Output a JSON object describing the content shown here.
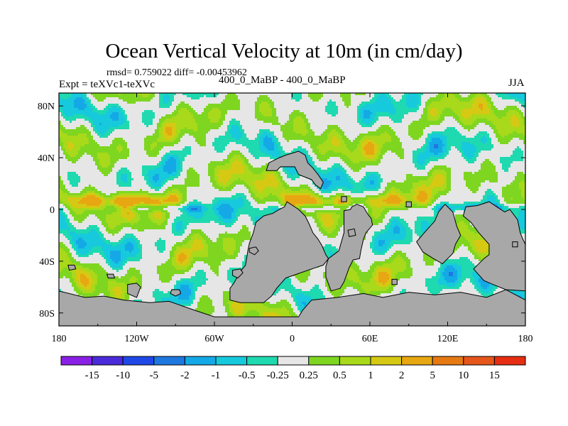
{
  "chart_data": {
    "type": "heatmap",
    "title": "Ocean Vertical Velocity at 10m (in cm/day)",
    "stats_text": "rmsd= 0.759022  diff= -0.00453962",
    "left_label": "Expt = teXVc1-teXVc",
    "center_label": "400_0_MaBP - 400_0_MaBP",
    "right_label": "JJA",
    "variable": "Ocean Vertical Velocity at 10m",
    "units": "cm/day",
    "rmsd": 0.759022,
    "diff": -0.00453962,
    "xlim": [
      -180,
      180
    ],
    "ylim": [
      -90,
      90
    ],
    "x_ticks": [
      {
        "value": -180,
        "label": "180"
      },
      {
        "value": -120,
        "label": "120W"
      },
      {
        "value": -60,
        "label": "60W"
      },
      {
        "value": 0,
        "label": "0"
      },
      {
        "value": 60,
        "label": "60E"
      },
      {
        "value": 120,
        "label": "120E"
      },
      {
        "value": 180,
        "label": "180"
      }
    ],
    "y_ticks": [
      {
        "value": 80,
        "label": "80N"
      },
      {
        "value": 40,
        "label": "40N"
      },
      {
        "value": 0,
        "label": "0"
      },
      {
        "value": -40,
        "label": "40S"
      },
      {
        "value": -80,
        "label": "80S"
      }
    ],
    "colorbar": {
      "levels": [
        "-15",
        "-10",
        "-5",
        "-2",
        "-1",
        "-0.5",
        "-0.25",
        "0.25",
        "0.5",
        "1",
        "2",
        "5",
        "10",
        "15"
      ],
      "colors": [
        "#8a1fe6",
        "#4a2bd9",
        "#1f48e6",
        "#1e78e0",
        "#14a9e6",
        "#17c9dc",
        "#1fd9b0",
        "#e6e6e6",
        "#7ed621",
        "#a8d91a",
        "#d6c914",
        "#e6a712",
        "#e67a12",
        "#e6551a",
        "#e62e12"
      ]
    },
    "land_color": "#a8a8a8",
    "land_regions": [
      {
        "name": "Antarctica",
        "polygon": [
          [
            -180,
            -63
          ],
          [
            -160,
            -68
          ],
          [
            -145,
            -67
          ],
          [
            -130,
            -70
          ],
          [
            -110,
            -72
          ],
          [
            -95,
            -71
          ],
          [
            -75,
            -78
          ],
          [
            -60,
            -83
          ],
          [
            -40,
            -83
          ],
          [
            -25,
            -83
          ],
          [
            -5,
            -83
          ],
          [
            5,
            -83
          ],
          [
            8,
            -78
          ],
          [
            15,
            -70
          ],
          [
            35,
            -68
          ],
          [
            55,
            -65
          ],
          [
            70,
            -68
          ],
          [
            90,
            -64
          ],
          [
            110,
            -66
          ],
          [
            130,
            -64
          ],
          [
            150,
            -68
          ],
          [
            165,
            -62
          ],
          [
            180,
            -70
          ],
          [
            180,
            -90
          ],
          [
            -180,
            -90
          ]
        ]
      },
      {
        "name": "South America",
        "polygon": [
          [
            -30,
            -18
          ],
          [
            -28,
            -10
          ],
          [
            -22,
            -5
          ],
          [
            -15,
            -3
          ],
          [
            -10,
            0
          ],
          [
            -6,
            2
          ],
          [
            -4,
            6
          ],
          [
            5,
            0
          ],
          [
            10,
            -5
          ],
          [
            13,
            -11
          ],
          [
            16,
            -18
          ],
          [
            20,
            -23
          ],
          [
            23,
            -28
          ],
          [
            26,
            -35
          ],
          [
            28,
            -38
          ],
          [
            24,
            -43
          ],
          [
            15,
            -46
          ],
          [
            -5,
            -53
          ],
          [
            -12,
            -61
          ],
          [
            -16,
            -67
          ],
          [
            -22,
            -72
          ],
          [
            -40,
            -72
          ],
          [
            -48,
            -70
          ],
          [
            -48,
            -61
          ],
          [
            -45,
            -57
          ],
          [
            -40,
            -48
          ],
          [
            -36,
            -43
          ],
          [
            -34,
            -31
          ],
          [
            -33,
            -26
          ]
        ]
      },
      {
        "name": "Africa",
        "polygon": [
          [
            40,
            -1
          ],
          [
            45,
            0
          ],
          [
            46,
            2
          ],
          [
            50,
            4
          ],
          [
            55,
            2
          ],
          [
            58,
            -3
          ],
          [
            61,
            -7
          ],
          [
            62,
            -12
          ],
          [
            57,
            -18
          ],
          [
            55,
            -23
          ],
          [
            53,
            -32
          ],
          [
            52,
            -38
          ],
          [
            47,
            -39
          ],
          [
            44,
            -45
          ],
          [
            40,
            -56
          ],
          [
            37,
            -61
          ],
          [
            30,
            -63
          ],
          [
            26,
            -52
          ],
          [
            26,
            -44
          ],
          [
            28,
            -38
          ],
          [
            36,
            -32
          ],
          [
            40,
            -18
          ],
          [
            40,
            -9
          ]
        ]
      },
      {
        "name": "Arabia-India",
        "polygon": [
          [
            113,
            -2
          ],
          [
            118,
            4
          ],
          [
            124,
            -2
          ],
          [
            127,
            -13
          ],
          [
            130,
            -20
          ],
          [
            126,
            -27
          ],
          [
            124,
            -34
          ],
          [
            116,
            -42
          ],
          [
            109,
            -38
          ],
          [
            101,
            -33
          ],
          [
            96,
            -25
          ],
          [
            102,
            -18
          ],
          [
            110,
            -9
          ]
        ]
      },
      {
        "name": "Australia",
        "polygon": [
          [
            134,
            2
          ],
          [
            143,
            3
          ],
          [
            152,
            6
          ],
          [
            158,
            2
          ],
          [
            164,
            -2
          ],
          [
            168,
            0
          ],
          [
            174,
            -8
          ],
          [
            176,
            -18
          ],
          [
            178,
            -23
          ],
          [
            180,
            -27
          ],
          [
            180,
            -63
          ],
          [
            165,
            -62
          ],
          [
            155,
            -58
          ],
          [
            148,
            -55
          ],
          [
            140,
            -46
          ],
          [
            148,
            -38
          ],
          [
            152,
            -35
          ],
          [
            152,
            -27
          ],
          [
            144,
            -18
          ],
          [
            138,
            -10
          ],
          [
            132,
            -5
          ]
        ]
      },
      {
        "name": "North block",
        "polygon": [
          [
            -20,
            30
          ],
          [
            -12,
            30
          ],
          [
            -9,
            33
          ],
          [
            2,
            33
          ],
          [
            5,
            27
          ],
          [
            15,
            23
          ],
          [
            18,
            19
          ],
          [
            22,
            16
          ],
          [
            24,
            21
          ],
          [
            20,
            27
          ],
          [
            16,
            32
          ],
          [
            12,
            36
          ],
          [
            10,
            42
          ],
          [
            5,
            45
          ],
          [
            -5,
            42
          ],
          [
            -10,
            40
          ],
          [
            -18,
            36
          ]
        ]
      },
      {
        "name": "Island A",
        "polygon": [
          [
            -33,
            -30
          ],
          [
            -28,
            -29
          ],
          [
            -26,
            -32
          ],
          [
            -29,
            -35
          ],
          [
            -33,
            -33
          ]
        ]
      },
      {
        "name": "Island B",
        "polygon": [
          [
            -46,
            -47
          ],
          [
            -40,
            -46
          ],
          [
            -38,
            -49
          ],
          [
            -42,
            -53
          ],
          [
            -46,
            -51
          ]
        ]
      },
      {
        "name": "Island C",
        "polygon": [
          [
            -127,
            -58
          ],
          [
            -120,
            -57
          ],
          [
            -117,
            -60
          ],
          [
            -120,
            -68
          ],
          [
            -127,
            -65
          ]
        ]
      },
      {
        "name": "Island D",
        "polygon": [
          [
            -93,
            -62
          ],
          [
            -87,
            -62
          ],
          [
            -86,
            -65
          ],
          [
            -90,
            -67
          ],
          [
            -94,
            -65
          ]
        ]
      },
      {
        "name": "Island E",
        "polygon": [
          [
            -173,
            -43
          ],
          [
            -168,
            -43
          ],
          [
            -167,
            -46
          ],
          [
            -172,
            -47
          ]
        ]
      },
      {
        "name": "Island F",
        "polygon": [
          [
            43,
            -16
          ],
          [
            48,
            -15
          ],
          [
            49,
            -20
          ],
          [
            44,
            -21
          ]
        ]
      },
      {
        "name": "Island G",
        "polygon": [
          [
            88,
            6
          ],
          [
            92,
            6
          ],
          [
            92,
            2
          ],
          [
            88,
            2
          ]
        ]
      },
      {
        "name": "Island H",
        "polygon": [
          [
            38,
            10
          ],
          [
            42,
            10
          ],
          [
            42,
            6
          ],
          [
            38,
            6
          ]
        ]
      },
      {
        "name": "Island I",
        "polygon": [
          [
            77,
            -54
          ],
          [
            81,
            -54
          ],
          [
            81,
            -58
          ],
          [
            77,
            -58
          ]
        ]
      },
      {
        "name": "Island J",
        "polygon": [
          [
            170,
            -25
          ],
          [
            174,
            -25
          ],
          [
            174,
            -29
          ],
          [
            170,
            -29
          ]
        ]
      },
      {
        "name": "Island K",
        "polygon": [
          [
            -143,
            -50
          ],
          [
            -138,
            -50
          ],
          [
            -137,
            -53
          ],
          [
            -142,
            -53
          ]
        ]
      }
    ]
  }
}
